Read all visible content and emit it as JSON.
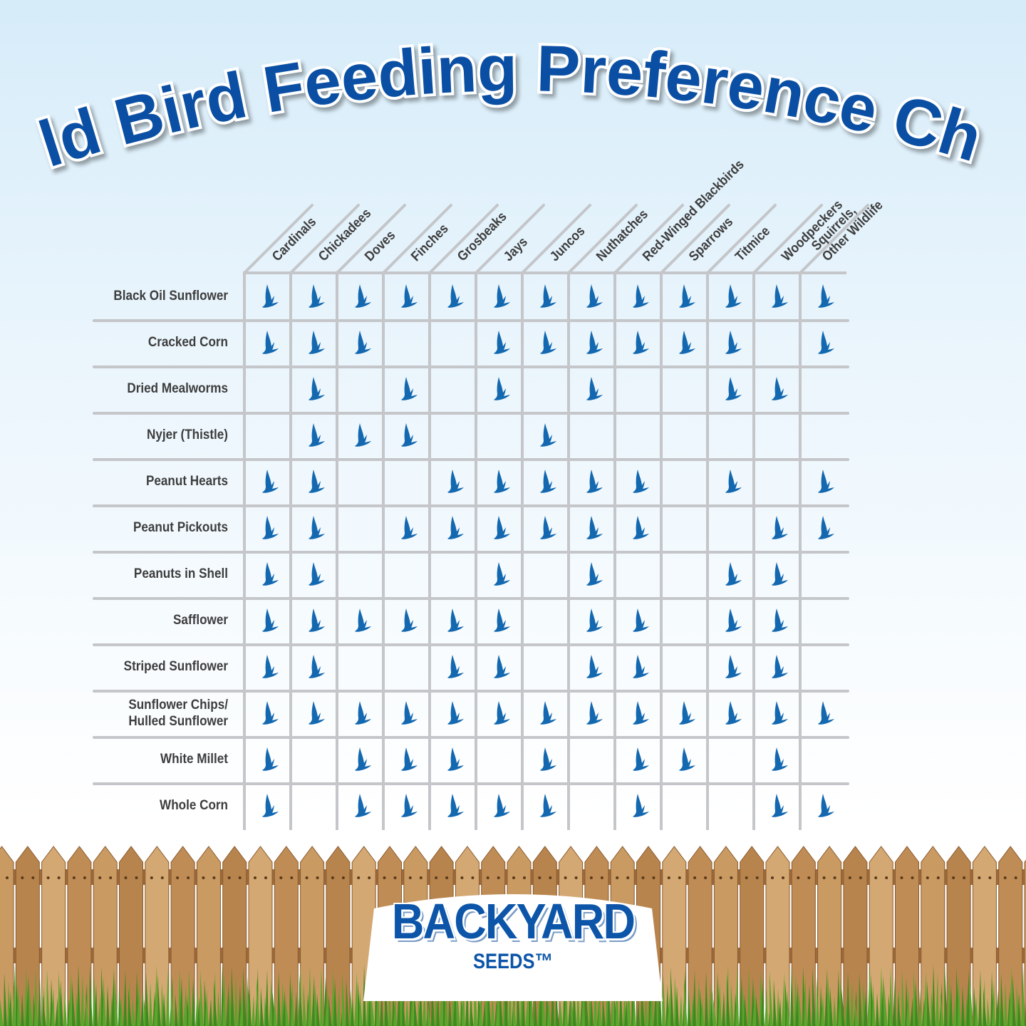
{
  "title": "Wild Bird Feeding Preference Chart",
  "brand": {
    "name": "BACKYARD",
    "sub": "SEEDS™"
  },
  "colors": {
    "title": "#0a4fa3",
    "bird_icon": "#1368b0",
    "grid": "#c4c6c9",
    "label": "#3d3d3d"
  },
  "chart_data": {
    "type": "table",
    "title": "Wild Bird Feeding Preference Chart",
    "marker_icon": "bird-icon",
    "columns": [
      "Cardinals",
      "Chickadees",
      "Doves",
      "Finches",
      "Grosbeaks",
      "Jays",
      "Juncos",
      "Nuthatches",
      "Red-Winged Blackbirds",
      "Sparrows",
      "Titmice",
      "Woodpeckers",
      "Squirrels,\nOther Wildlife"
    ],
    "rows": [
      {
        "label": "Black Oil Sunflower",
        "values": [
          1,
          1,
          1,
          1,
          1,
          1,
          1,
          1,
          1,
          1,
          1,
          1,
          1
        ]
      },
      {
        "label": "Cracked Corn",
        "values": [
          1,
          1,
          1,
          0,
          0,
          1,
          1,
          1,
          1,
          1,
          1,
          0,
          1
        ]
      },
      {
        "label": "Dried Mealworms",
        "values": [
          0,
          1,
          0,
          1,
          0,
          1,
          0,
          1,
          0,
          0,
          1,
          1,
          0
        ]
      },
      {
        "label": "Nyjer (Thistle)",
        "values": [
          0,
          1,
          1,
          1,
          0,
          0,
          1,
          0,
          0,
          0,
          0,
          0,
          0
        ]
      },
      {
        "label": "Peanut Hearts",
        "values": [
          1,
          1,
          0,
          0,
          1,
          1,
          1,
          1,
          1,
          0,
          1,
          0,
          1
        ]
      },
      {
        "label": "Peanut Pickouts",
        "values": [
          1,
          1,
          0,
          1,
          1,
          1,
          1,
          1,
          1,
          0,
          0,
          1,
          1
        ]
      },
      {
        "label": "Peanuts in Shell",
        "values": [
          1,
          1,
          0,
          0,
          0,
          1,
          0,
          1,
          0,
          0,
          1,
          1,
          0
        ]
      },
      {
        "label": "Safflower",
        "values": [
          1,
          1,
          1,
          1,
          1,
          1,
          0,
          1,
          1,
          0,
          1,
          1,
          0
        ]
      },
      {
        "label": "Striped Sunflower",
        "values": [
          1,
          1,
          0,
          0,
          1,
          1,
          0,
          1,
          1,
          0,
          1,
          1,
          0
        ]
      },
      {
        "label": "Sunflower Chips/\nHulled Sunflower",
        "values": [
          1,
          1,
          1,
          1,
          1,
          1,
          1,
          1,
          1,
          1,
          1,
          1,
          1
        ]
      },
      {
        "label": "White Millet",
        "values": [
          1,
          0,
          1,
          1,
          1,
          0,
          1,
          0,
          1,
          1,
          0,
          1,
          0
        ]
      },
      {
        "label": "Whole Corn",
        "values": [
          1,
          0,
          1,
          1,
          1,
          1,
          1,
          0,
          1,
          0,
          0,
          1,
          1
        ]
      }
    ]
  }
}
